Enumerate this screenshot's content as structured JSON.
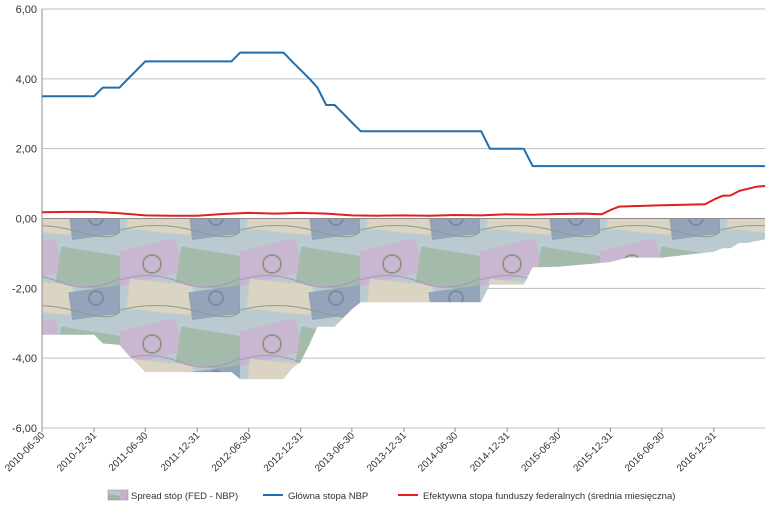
{
  "chart_data": {
    "type": "area+line",
    "title": "",
    "xlabel": "",
    "ylabel": "",
    "ylim": [
      -6,
      6
    ],
    "y_ticks": [
      "6,00",
      "4,00",
      "2,00",
      "0,00",
      "-2,00",
      "-4,00",
      "-6,00"
    ],
    "x_ticks": [
      "2010-06-30",
      "2010-12-31",
      "2011-06-30",
      "2011-12-31",
      "2012-06-30",
      "2012-12-31",
      "2013-06-30",
      "2013-12-31",
      "2014-06-30",
      "2014-12-31",
      "2015-06-30",
      "2015-12-31",
      "2016-06-30",
      "2016-12-31"
    ],
    "x_start": "2010-06-30",
    "x_end": "2017-06-30",
    "grid": "horizontal",
    "legend_placement": "bottom",
    "colors": {
      "spread": "#8fa8b8",
      "nbp": "#1f6fb0",
      "fed": "#e02020",
      "grid": "#bfbfbf",
      "axis": "#8c8c8c"
    },
    "series": [
      {
        "name": "Spread stóp (FED - NBP)",
        "kind": "area",
        "points": [
          [
            "2010-06-30",
            -3.33
          ],
          [
            "2010-12-31",
            -3.33
          ],
          [
            "2011-01-31",
            -3.58
          ],
          [
            "2011-03-31",
            -3.62
          ],
          [
            "2011-04-30",
            -3.9
          ],
          [
            "2011-05-31",
            -4.15
          ],
          [
            "2011-06-30",
            -4.4
          ],
          [
            "2011-12-31",
            -4.4
          ],
          [
            "2012-04-30",
            -4.4
          ],
          [
            "2012-05-31",
            -4.6
          ],
          [
            "2012-10-31",
            -4.6
          ],
          [
            "2012-11-30",
            -4.3
          ],
          [
            "2012-12-31",
            -4.1
          ],
          [
            "2013-01-31",
            -3.6
          ],
          [
            "2013-02-28",
            -3.1
          ],
          [
            "2013-04-30",
            -3.1
          ],
          [
            "2013-05-31",
            -2.85
          ],
          [
            "2013-06-30",
            -2.6
          ],
          [
            "2013-07-31",
            -2.4
          ],
          [
            "2013-12-31",
            -2.4
          ],
          [
            "2014-06-30",
            -2.4
          ],
          [
            "2014-09-30",
            -2.4
          ],
          [
            "2014-10-31",
            -1.9
          ],
          [
            "2015-02-28",
            -1.9
          ],
          [
            "2015-03-31",
            -1.4
          ],
          [
            "2015-06-30",
            -1.38
          ],
          [
            "2015-12-31",
            -1.25
          ],
          [
            "2016-02-29",
            -1.12
          ],
          [
            "2016-06-30",
            -1.12
          ],
          [
            "2016-12-31",
            -0.95
          ],
          [
            "2017-01-31",
            -0.85
          ],
          [
            "2017-02-28",
            -0.85
          ],
          [
            "2017-03-31",
            -0.7
          ],
          [
            "2017-04-30",
            -0.7
          ],
          [
            "2017-06-30",
            -0.6
          ]
        ]
      },
      {
        "name": "Główna stopa NBP",
        "kind": "line",
        "points": [
          [
            "2010-06-30",
            3.5
          ],
          [
            "2010-12-31",
            3.5
          ],
          [
            "2011-01-31",
            3.75
          ],
          [
            "2011-03-31",
            3.75
          ],
          [
            "2011-04-30",
            4.0
          ],
          [
            "2011-05-31",
            4.25
          ],
          [
            "2011-06-30",
            4.5
          ],
          [
            "2012-04-30",
            4.5
          ],
          [
            "2012-05-31",
            4.75
          ],
          [
            "2012-10-31",
            4.75
          ],
          [
            "2012-11-30",
            4.5
          ],
          [
            "2012-12-31",
            4.25
          ],
          [
            "2013-01-31",
            4.0
          ],
          [
            "2013-02-28",
            3.75
          ],
          [
            "2013-03-31",
            3.25
          ],
          [
            "2013-04-30",
            3.25
          ],
          [
            "2013-05-31",
            3.0
          ],
          [
            "2013-06-30",
            2.75
          ],
          [
            "2013-07-31",
            2.5
          ],
          [
            "2014-09-30",
            2.5
          ],
          [
            "2014-10-31",
            2.0
          ],
          [
            "2015-02-28",
            2.0
          ],
          [
            "2015-03-31",
            1.5
          ],
          [
            "2017-06-30",
            1.5
          ]
        ]
      },
      {
        "name": "Efektywna stopa funduszy federalnych (średnia miesięczna)",
        "kind": "line",
        "points": [
          [
            "2010-06-30",
            0.18
          ],
          [
            "2010-09-30",
            0.19
          ],
          [
            "2010-12-31",
            0.19
          ],
          [
            "2011-03-31",
            0.15
          ],
          [
            "2011-06-30",
            0.09
          ],
          [
            "2011-09-30",
            0.08
          ],
          [
            "2011-12-31",
            0.08
          ],
          [
            "2012-03-31",
            0.13
          ],
          [
            "2012-06-30",
            0.16
          ],
          [
            "2012-09-30",
            0.14
          ],
          [
            "2012-12-31",
            0.16
          ],
          [
            "2013-03-31",
            0.14
          ],
          [
            "2013-06-30",
            0.09
          ],
          [
            "2013-09-30",
            0.08
          ],
          [
            "2013-12-31",
            0.09
          ],
          [
            "2014-03-31",
            0.08
          ],
          [
            "2014-06-30",
            0.1
          ],
          [
            "2014-09-30",
            0.09
          ],
          [
            "2014-12-31",
            0.12
          ],
          [
            "2015-03-31",
            0.11
          ],
          [
            "2015-06-30",
            0.13
          ],
          [
            "2015-09-30",
            0.14
          ],
          [
            "2015-11-30",
            0.12
          ],
          [
            "2015-12-31",
            0.24
          ],
          [
            "2016-01-31",
            0.34
          ],
          [
            "2016-06-30",
            0.38
          ],
          [
            "2016-11-30",
            0.41
          ],
          [
            "2016-12-31",
            0.54
          ],
          [
            "2017-01-31",
            0.65
          ],
          [
            "2017-02-28",
            0.66
          ],
          [
            "2017-03-31",
            0.79
          ],
          [
            "2017-05-31",
            0.91
          ],
          [
            "2017-06-30",
            0.93
          ]
        ]
      }
    ]
  }
}
